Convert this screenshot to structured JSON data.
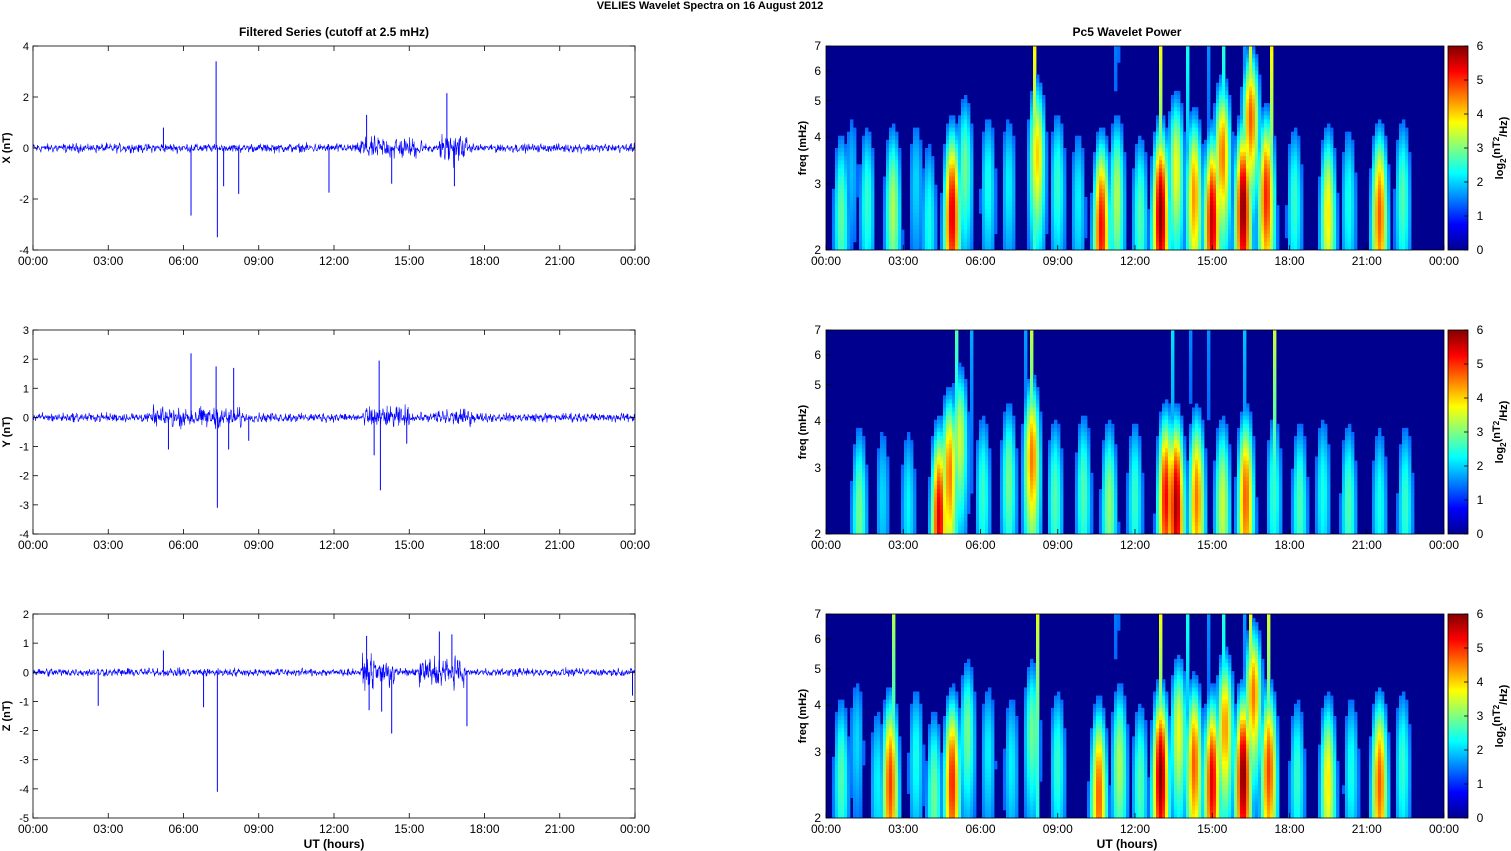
{
  "figure": {
    "suptitle": "VELIES Wavelet Spectra on 16 August    2012",
    "left_title": "Filtered Series (cutoff at 2.5 mHz)",
    "right_title": "Pc5 Wavelet Power",
    "xlabel": "UT (hours)"
  },
  "chart_data": [
    {
      "type": "line",
      "component": "X",
      "ylabel": "X (nT)",
      "x_ticks": [
        "00:00",
        "03:00",
        "06:00",
        "09:00",
        "12:00",
        "15:00",
        "18:00",
        "21:00",
        "00:00"
      ],
      "xlim_hours": [
        0,
        24
      ],
      "ylim": [
        -4,
        4
      ],
      "y_ticks": [
        -4,
        -2,
        0,
        2,
        4
      ],
      "color": "#0000ff",
      "noise_amplitude": 0.22,
      "bursts": [
        {
          "start_h": 13.0,
          "end_h": 15.5,
          "amp": 0.55
        },
        {
          "start_h": 16.2,
          "end_h": 17.3,
          "amp": 0.75
        }
      ],
      "spikes": [
        {
          "t": 5.2,
          "v": 0.8
        },
        {
          "t": 6.3,
          "v": -2.65
        },
        {
          "t": 7.3,
          "v": 3.4
        },
        {
          "t": 7.35,
          "v": -3.5
        },
        {
          "t": 7.6,
          "v": -1.5
        },
        {
          "t": 8.2,
          "v": -1.8
        },
        {
          "t": 11.8,
          "v": -1.75
        },
        {
          "t": 13.3,
          "v": 1.3
        },
        {
          "t": 14.3,
          "v": -1.4
        },
        {
          "t": 16.5,
          "v": 2.15
        },
        {
          "t": 16.8,
          "v": -1.5
        }
      ]
    },
    {
      "type": "line",
      "component": "Y",
      "ylabel": "Y (nT)",
      "x_ticks": [
        "00:00",
        "03:00",
        "06:00",
        "09:00",
        "12:00",
        "15:00",
        "18:00",
        "21:00",
        "00:00"
      ],
      "xlim_hours": [
        0,
        24
      ],
      "ylim": [
        -4,
        3
      ],
      "y_ticks": [
        -4,
        -3,
        -2,
        -1,
        0,
        1,
        2,
        3
      ],
      "color": "#0000ff",
      "noise_amplitude": 0.2,
      "bursts": [
        {
          "start_h": 4.8,
          "end_h": 8.3,
          "amp": 0.45
        },
        {
          "start_h": 13.2,
          "end_h": 15.0,
          "amp": 0.5
        },
        {
          "start_h": 16.0,
          "end_h": 17.5,
          "amp": 0.35
        }
      ],
      "spikes": [
        {
          "t": 5.4,
          "v": -1.1
        },
        {
          "t": 6.3,
          "v": 2.2
        },
        {
          "t": 7.3,
          "v": 1.75
        },
        {
          "t": 7.35,
          "v": -3.1
        },
        {
          "t": 7.8,
          "v": -1.1
        },
        {
          "t": 8.0,
          "v": 1.7
        },
        {
          "t": 8.6,
          "v": -0.8
        },
        {
          "t": 13.6,
          "v": -1.3
        },
        {
          "t": 13.8,
          "v": 1.95
        },
        {
          "t": 13.85,
          "v": -2.5
        },
        {
          "t": 14.9,
          "v": -0.9
        }
      ]
    },
    {
      "type": "line",
      "component": "Z",
      "ylabel": "Z (nT)",
      "x_ticks": [
        "00:00",
        "03:00",
        "06:00",
        "09:00",
        "12:00",
        "15:00",
        "18:00",
        "21:00",
        "00:00"
      ],
      "xlim_hours": [
        0,
        24
      ],
      "ylim": [
        -5,
        2
      ],
      "y_ticks": [
        -5,
        -4,
        -3,
        -2,
        -1,
        0,
        1,
        2
      ],
      "color": "#0000ff",
      "noise_amplitude": 0.18,
      "bursts": [
        {
          "start_h": 13.1,
          "end_h": 14.4,
          "amp": 0.65
        },
        {
          "start_h": 15.4,
          "end_h": 17.2,
          "amp": 0.7
        }
      ],
      "spikes": [
        {
          "t": 2.6,
          "v": -1.15
        },
        {
          "t": 5.2,
          "v": 0.75
        },
        {
          "t": 7.35,
          "v": -4.1
        },
        {
          "t": 6.8,
          "v": -1.2
        },
        {
          "t": 13.3,
          "v": 1.25
        },
        {
          "t": 13.4,
          "v": -1.3
        },
        {
          "t": 13.9,
          "v": -1.35
        },
        {
          "t": 14.3,
          "v": -2.1
        },
        {
          "t": 16.2,
          "v": 1.4
        },
        {
          "t": 16.7,
          "v": 1.3
        },
        {
          "t": 17.3,
          "v": -1.85
        },
        {
          "t": 23.9,
          "v": -0.8
        }
      ]
    },
    {
      "type": "heatmap",
      "component": "X",
      "ylabel": "freq (mHz)",
      "yscale": "log",
      "ylim": [
        2,
        7
      ],
      "y_ticks": [
        2,
        3,
        4,
        5,
        6,
        7
      ],
      "x_ticks": [
        "00:00",
        "03:00",
        "06:00",
        "09:00",
        "12:00",
        "15:00",
        "18:00",
        "21:00",
        "00:00"
      ],
      "xlim_hours": [
        0,
        24
      ],
      "colorbar_label": "log2(nT2/Hz)",
      "clim": [
        0,
        6
      ],
      "colorbar_ticks": [
        0,
        1,
        2,
        3,
        4,
        5,
        6
      ],
      "colormap": "jet",
      "blobs": [
        {
          "t": 0.6,
          "f": 2.5,
          "p": 2.5
        },
        {
          "t": 1.0,
          "f": 3.2,
          "p": 1.4
        },
        {
          "t": 1.6,
          "f": 2.7,
          "p": 2.2
        },
        {
          "t": 2.6,
          "f": 2.6,
          "p": 3.0
        },
        {
          "t": 3.5,
          "f": 3.0,
          "p": 1.6
        },
        {
          "t": 4.0,
          "f": 2.4,
          "p": 2.0
        },
        {
          "t": 4.9,
          "f": 2.5,
          "p": 5.4
        },
        {
          "t": 5.4,
          "f": 3.3,
          "p": 2.6
        },
        {
          "t": 6.3,
          "f": 3.0,
          "p": 2.0
        },
        {
          "t": 7.1,
          "f": 3.0,
          "p": 1.8
        },
        {
          "t": 8.2,
          "f": 3.6,
          "p": 3.8
        },
        {
          "t": 9.0,
          "f": 3.0,
          "p": 2.2
        },
        {
          "t": 9.8,
          "f": 2.7,
          "p": 1.8
        },
        {
          "t": 10.7,
          "f": 2.3,
          "p": 5.2
        },
        {
          "t": 11.3,
          "f": 2.8,
          "p": 3.0
        },
        {
          "t": 12.2,
          "f": 2.5,
          "p": 2.4
        },
        {
          "t": 13.0,
          "f": 2.5,
          "p": 6.0
        },
        {
          "t": 13.6,
          "f": 3.3,
          "p": 3.4
        },
        {
          "t": 14.3,
          "f": 2.8,
          "p": 4.2
        },
        {
          "t": 15.0,
          "f": 2.4,
          "p": 5.6
        },
        {
          "t": 15.4,
          "f": 3.6,
          "p": 4.4
        },
        {
          "t": 16.2,
          "f": 2.6,
          "p": 6.0
        },
        {
          "t": 16.5,
          "f": 4.5,
          "p": 4.6
        },
        {
          "t": 17.1,
          "f": 2.8,
          "p": 5.0
        },
        {
          "t": 18.2,
          "f": 2.7,
          "p": 2.2
        },
        {
          "t": 19.5,
          "f": 2.5,
          "p": 3.6
        },
        {
          "t": 20.3,
          "f": 2.7,
          "p": 2.0
        },
        {
          "t": 21.5,
          "f": 2.5,
          "p": 4.6
        },
        {
          "t": 22.4,
          "f": 2.8,
          "p": 2.4
        }
      ],
      "streaks": [
        8.1,
        11.3,
        13.0,
        14.0,
        14.8,
        15.4,
        16.2,
        16.5,
        17.3
      ]
    },
    {
      "type": "heatmap",
      "component": "Y",
      "ylabel": "freq (mHz)",
      "yscale": "log",
      "ylim": [
        2,
        7
      ],
      "y_ticks": [
        2,
        3,
        4,
        5,
        6,
        7
      ],
      "x_ticks": [
        "00:00",
        "03:00",
        "06:00",
        "09:00",
        "12:00",
        "15:00",
        "18:00",
        "21:00",
        "00:00"
      ],
      "xlim_hours": [
        0,
        24
      ],
      "colorbar_label": "log2(nT2/Hz)",
      "clim": [
        0,
        6
      ],
      "colorbar_ticks": [
        0,
        1,
        2,
        3,
        4,
        5,
        6
      ],
      "colormap": "jet",
      "blobs": [
        {
          "t": 1.3,
          "f": 2.3,
          "p": 2.6
        },
        {
          "t": 2.2,
          "f": 2.5,
          "p": 1.6
        },
        {
          "t": 3.2,
          "f": 2.4,
          "p": 1.8
        },
        {
          "t": 4.4,
          "f": 2.2,
          "p": 5.4
        },
        {
          "t": 4.8,
          "f": 2.9,
          "p": 4.4
        },
        {
          "t": 5.2,
          "f": 3.6,
          "p": 3.2
        },
        {
          "t": 6.1,
          "f": 2.6,
          "p": 2.2
        },
        {
          "t": 7.1,
          "f": 2.8,
          "p": 2.6
        },
        {
          "t": 8.0,
          "f": 3.2,
          "p": 4.4
        },
        {
          "t": 8.9,
          "f": 2.5,
          "p": 2.4
        },
        {
          "t": 10.0,
          "f": 2.6,
          "p": 2.4
        },
        {
          "t": 11.0,
          "f": 2.4,
          "p": 2.8
        },
        {
          "t": 12.0,
          "f": 2.5,
          "p": 2.2
        },
        {
          "t": 13.2,
          "f": 2.5,
          "p": 5.2
        },
        {
          "t": 13.6,
          "f": 2.4,
          "p": 5.8
        },
        {
          "t": 14.4,
          "f": 2.5,
          "p": 4.4
        },
        {
          "t": 15.4,
          "f": 2.4,
          "p": 3.2
        },
        {
          "t": 16.3,
          "f": 2.5,
          "p": 4.6
        },
        {
          "t": 17.4,
          "f": 2.6,
          "p": 2.2
        },
        {
          "t": 18.4,
          "f": 2.4,
          "p": 2.4
        },
        {
          "t": 19.3,
          "f": 2.6,
          "p": 2.0
        },
        {
          "t": 20.3,
          "f": 2.4,
          "p": 2.4
        },
        {
          "t": 21.5,
          "f": 2.4,
          "p": 2.0
        },
        {
          "t": 22.5,
          "f": 2.4,
          "p": 2.2
        }
      ],
      "streaks": [
        5.1,
        5.6,
        7.8,
        8.0,
        13.5,
        14.1,
        14.8,
        16.3,
        17.4
      ]
    },
    {
      "type": "heatmap",
      "component": "Z",
      "ylabel": "freq (mHz)",
      "yscale": "log",
      "ylim": [
        2,
        7
      ],
      "y_ticks": [
        2,
        3,
        4,
        5,
        6,
        7
      ],
      "x_ticks": [
        "00:00",
        "03:00",
        "06:00",
        "09:00",
        "12:00",
        "15:00",
        "18:00",
        "21:00",
        "00:00"
      ],
      "xlim_hours": [
        0,
        24
      ],
      "colorbar_label": "log2(nT2/Hz)",
      "clim": [
        0,
        6
      ],
      "colorbar_ticks": [
        0,
        1,
        2,
        3,
        4,
        5,
        6
      ],
      "colormap": "jet",
      "blobs": [
        {
          "t": 0.6,
          "f": 2.6,
          "p": 2.4
        },
        {
          "t": 1.2,
          "f": 3.2,
          "p": 1.6
        },
        {
          "t": 2.0,
          "f": 2.5,
          "p": 1.8
        },
        {
          "t": 2.5,
          "f": 2.5,
          "p": 4.8
        },
        {
          "t": 3.5,
          "f": 2.9,
          "p": 2.0
        },
        {
          "t": 4.2,
          "f": 2.3,
          "p": 2.6
        },
        {
          "t": 4.9,
          "f": 2.5,
          "p": 5.0
        },
        {
          "t": 5.5,
          "f": 3.4,
          "p": 2.6
        },
        {
          "t": 6.3,
          "f": 3.0,
          "p": 1.8
        },
        {
          "t": 7.2,
          "f": 2.8,
          "p": 1.8
        },
        {
          "t": 8.0,
          "f": 3.4,
          "p": 2.6
        },
        {
          "t": 9.0,
          "f": 2.8,
          "p": 2.2
        },
        {
          "t": 10.6,
          "f": 2.3,
          "p": 4.6
        },
        {
          "t": 11.4,
          "f": 2.8,
          "p": 3.0
        },
        {
          "t": 12.2,
          "f": 2.5,
          "p": 2.4
        },
        {
          "t": 13.0,
          "f": 2.6,
          "p": 6.0
        },
        {
          "t": 13.7,
          "f": 3.4,
          "p": 3.4
        },
        {
          "t": 14.3,
          "f": 2.8,
          "p": 4.6
        },
        {
          "t": 15.0,
          "f": 2.5,
          "p": 5.4
        },
        {
          "t": 15.5,
          "f": 3.5,
          "p": 4.2
        },
        {
          "t": 16.2,
          "f": 2.6,
          "p": 6.0
        },
        {
          "t": 16.6,
          "f": 4.3,
          "p": 4.4
        },
        {
          "t": 17.2,
          "f": 2.7,
          "p": 4.8
        },
        {
          "t": 18.3,
          "f": 2.6,
          "p": 2.2
        },
        {
          "t": 19.5,
          "f": 2.5,
          "p": 3.6
        },
        {
          "t": 20.4,
          "f": 2.7,
          "p": 2.0
        },
        {
          "t": 21.5,
          "f": 2.5,
          "p": 4.6
        },
        {
          "t": 22.4,
          "f": 2.8,
          "p": 2.2
        }
      ],
      "streaks": [
        2.6,
        8.2,
        11.3,
        13.0,
        14.0,
        14.8,
        15.4,
        16.2,
        16.5,
        17.2
      ]
    }
  ]
}
